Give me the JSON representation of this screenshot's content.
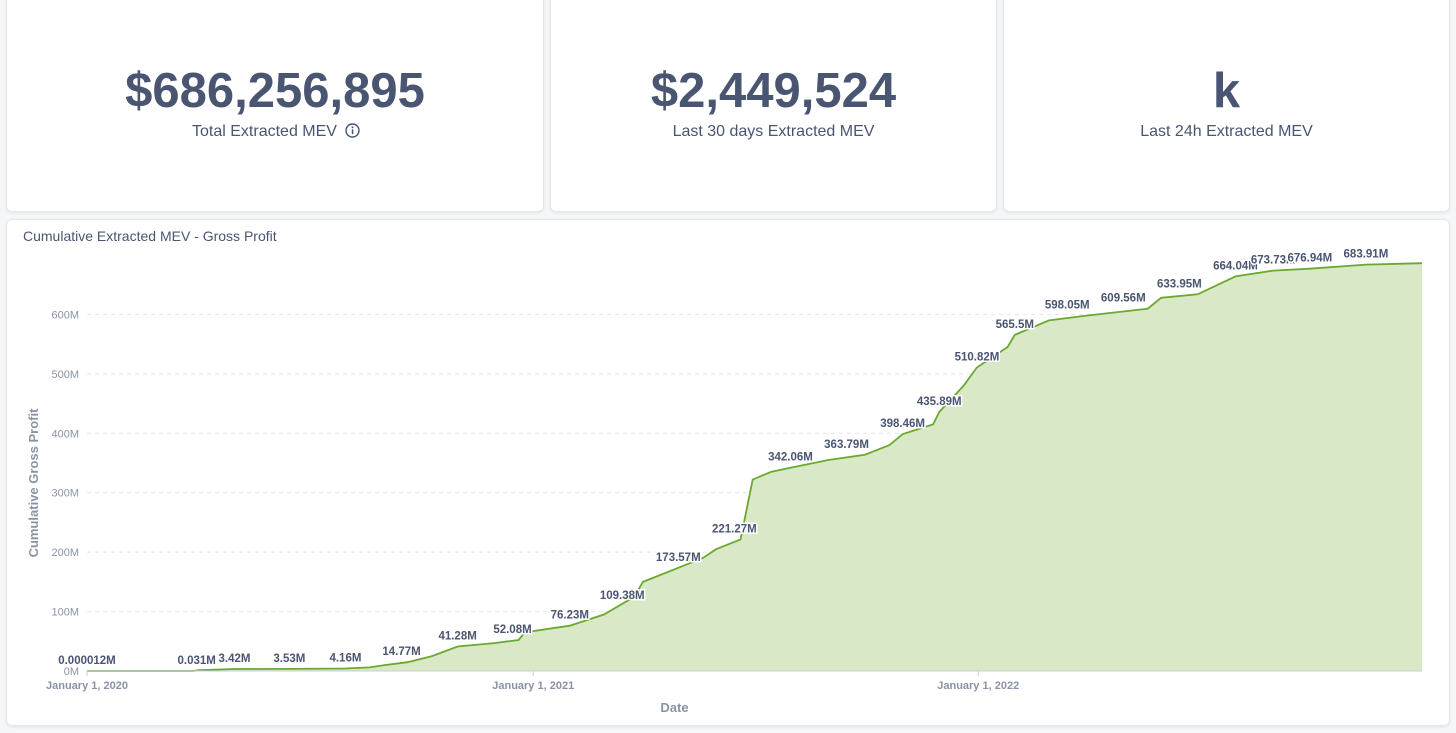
{
  "kpis": [
    {
      "value": "$686,256,895",
      "label": "Total Extracted MEV",
      "info_icon": "info-icon"
    },
    {
      "value": "$2,449,524",
      "label": "Last 30 days Extracted MEV"
    },
    {
      "value": "k",
      "label": "Last 24h Extracted MEV"
    }
  ],
  "colors": {
    "line": "#6aa92e",
    "fill": "#d9e9c7",
    "text": "#4a5572",
    "axis": "#8a93a6",
    "grid": "#e2e5ea"
  },
  "chart_data": {
    "type": "area",
    "title": "Cumulative Extracted MEV - Gross Profit",
    "xlabel": "Date",
    "ylabel": "Cumulative Gross Profit",
    "x_range": [
      "2020-01-01",
      "2022-12-31"
    ],
    "ylim": [
      0,
      700
    ],
    "y_unit": "M",
    "y_ticks": [
      {
        "value": 0,
        "label": "0M"
      },
      {
        "value": 100,
        "label": "100M"
      },
      {
        "value": 200,
        "label": "200M"
      },
      {
        "value": 300,
        "label": "300M"
      },
      {
        "value": 400,
        "label": "400M"
      },
      {
        "value": 500,
        "label": "500M"
      },
      {
        "value": 600,
        "label": "600M"
      }
    ],
    "x_ticks": [
      {
        "date": "2020-01-01",
        "label": "January 1, 2020"
      },
      {
        "date": "2021-01-01",
        "label": "January 1, 2021"
      },
      {
        "date": "2022-01-01",
        "label": "January 1, 2022"
      }
    ],
    "grid": true,
    "legend": "none",
    "series": [
      {
        "values": [
          {
            "date": "2020-01-01",
            "value": 1.2e-05
          },
          {
            "date": "2020-03-28",
            "value": 0.031
          },
          {
            "date": "2020-04-02",
            "value": 1.5
          },
          {
            "date": "2020-05-01",
            "value": 3.42
          },
          {
            "date": "2020-06-15",
            "value": 3.53
          },
          {
            "date": "2020-07-31",
            "value": 4.16
          },
          {
            "date": "2020-08-20",
            "value": 6
          },
          {
            "date": "2020-09-01",
            "value": 10
          },
          {
            "date": "2020-09-20",
            "value": 14.77
          },
          {
            "date": "2020-10-10",
            "value": 25
          },
          {
            "date": "2020-10-31",
            "value": 41.28
          },
          {
            "date": "2020-11-30",
            "value": 47
          },
          {
            "date": "2020-12-20",
            "value": 52.08
          },
          {
            "date": "2020-12-25",
            "value": 65
          },
          {
            "date": "2021-01-31",
            "value": 76.23
          },
          {
            "date": "2021-02-28",
            "value": 95
          },
          {
            "date": "2021-03-25",
            "value": 125
          },
          {
            "date": "2021-04-01",
            "value": 150
          },
          {
            "date": "2021-04-30",
            "value": 173.57
          },
          {
            "date": "2021-05-20",
            "value": 190
          },
          {
            "date": "2021-05-31",
            "value": 205
          },
          {
            "date": "2021-06-20",
            "value": 221.27
          },
          {
            "date": "2021-06-30",
            "value": 322
          },
          {
            "date": "2021-07-15",
            "value": 335
          },
          {
            "date": "2021-07-31",
            "value": 342.06
          },
          {
            "date": "2021-08-31",
            "value": 355
          },
          {
            "date": "2021-09-30",
            "value": 363.79
          },
          {
            "date": "2021-10-20",
            "value": 380
          },
          {
            "date": "2021-10-31",
            "value": 398.46
          },
          {
            "date": "2021-11-25",
            "value": 415
          },
          {
            "date": "2021-11-30",
            "value": 435.89
          },
          {
            "date": "2021-12-20",
            "value": 480
          },
          {
            "date": "2021-12-31",
            "value": 510.82
          },
          {
            "date": "2022-01-25",
            "value": 545
          },
          {
            "date": "2022-01-31",
            "value": 565.5
          },
          {
            "date": "2022-02-28",
            "value": 590
          },
          {
            "date": "2022-03-31",
            "value": 598.05
          },
          {
            "date": "2022-05-20",
            "value": 609.56
          },
          {
            "date": "2022-05-31",
            "value": 628
          },
          {
            "date": "2022-06-30",
            "value": 633.95
          },
          {
            "date": "2022-07-31",
            "value": 664.04
          },
          {
            "date": "2022-08-31",
            "value": 673.73
          },
          {
            "date": "2022-09-30",
            "value": 676.94
          },
          {
            "date": "2022-11-15",
            "value": 683.91
          },
          {
            "date": "2022-12-31",
            "value": 686.26
          }
        ]
      }
    ],
    "data_labels": [
      {
        "date": "2020-01-01",
        "value": 1.2e-05,
        "label": "0.000012M"
      },
      {
        "date": "2020-03-31",
        "value": 0.031,
        "label": "0.031M"
      },
      {
        "date": "2020-05-01",
        "value": 3.42,
        "label": "3.42M"
      },
      {
        "date": "2020-06-15",
        "value": 3.53,
        "label": "3.53M"
      },
      {
        "date": "2020-07-31",
        "value": 4.16,
        "label": "4.16M"
      },
      {
        "date": "2020-09-15",
        "value": 14.77,
        "label": "14.77M"
      },
      {
        "date": "2020-10-31",
        "value": 41.28,
        "label": "41.28M"
      },
      {
        "date": "2020-12-15",
        "value": 52.08,
        "label": "52.08M"
      },
      {
        "date": "2021-01-31",
        "value": 76.23,
        "label": "76.23M"
      },
      {
        "date": "2021-03-15",
        "value": 109.38,
        "label": "109.38M"
      },
      {
        "date": "2021-04-30",
        "value": 173.57,
        "label": "173.57M"
      },
      {
        "date": "2021-06-15",
        "value": 221.27,
        "label": "221.27M"
      },
      {
        "date": "2021-07-31",
        "value": 342.06,
        "label": "342.06M"
      },
      {
        "date": "2021-09-15",
        "value": 363.79,
        "label": "363.79M"
      },
      {
        "date": "2021-10-31",
        "value": 398.46,
        "label": "398.46M"
      },
      {
        "date": "2021-11-30",
        "value": 435.89,
        "label": "435.89M"
      },
      {
        "date": "2021-12-31",
        "value": 510.82,
        "label": "510.82M"
      },
      {
        "date": "2022-01-31",
        "value": 565.5,
        "label": "565.5M"
      },
      {
        "date": "2022-03-15",
        "value": 598.05,
        "label": "598.05M"
      },
      {
        "date": "2022-04-30",
        "value": 609.56,
        "label": "609.56M"
      },
      {
        "date": "2022-06-15",
        "value": 633.95,
        "label": "633.95M"
      },
      {
        "date": "2022-07-31",
        "value": 664.04,
        "label": "664.04M"
      },
      {
        "date": "2022-08-31",
        "value": 673.73,
        "label": "673.73M"
      },
      {
        "date": "2022-09-30",
        "value": 676.94,
        "label": "676.94M"
      },
      {
        "date": "2022-11-15",
        "value": 683.91,
        "label": "683.91M"
      }
    ]
  }
}
